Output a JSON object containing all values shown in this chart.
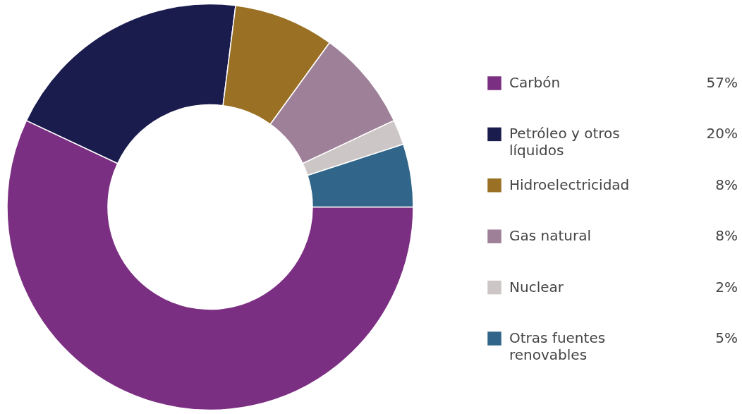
{
  "chart_data": {
    "type": "donut",
    "categories": [
      "Carbón",
      "Petróleo y otros líquidos",
      "Hidroelectricidad",
      "Gas natural",
      "Nuclear",
      "Otras fuentes renovables"
    ],
    "values": [
      57,
      20,
      8,
      8,
      2,
      5
    ],
    "value_labels": [
      "57%",
      "20%",
      "8%",
      "8%",
      "2%",
      "5%"
    ],
    "colors": [
      "#7b2f82",
      "#1b1c4e",
      "#9a7024",
      "#9e8098",
      "#cdc6c6",
      "#31668a"
    ],
    "legend": "right"
  }
}
